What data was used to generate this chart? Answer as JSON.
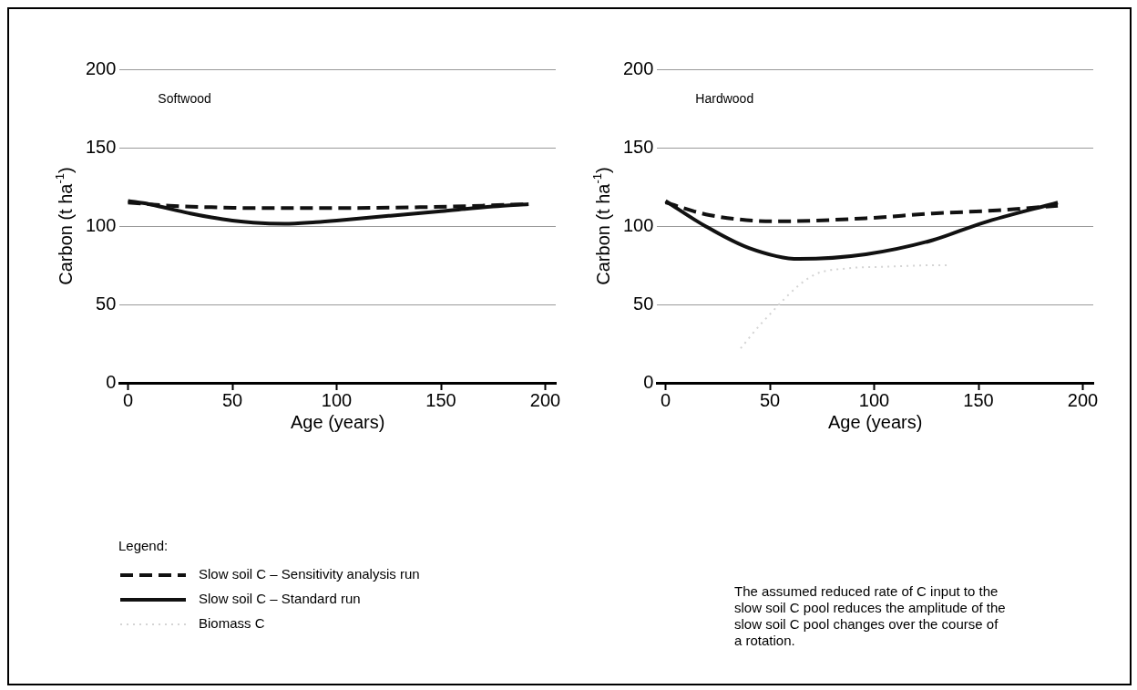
{
  "chart_data": [
    {
      "type": "line",
      "title": "Softwood",
      "xlabel": "Age (years)",
      "ylabel": "Carbon (t ha$^{-1}$)",
      "xlim": [
        -4,
        205
      ],
      "xticks": [
        0,
        50,
        100,
        150,
        200
      ],
      "ylim": [
        0,
        200
      ],
      "yticks": [
        0,
        50,
        100,
        150,
        200
      ],
      "grid": "y",
      "marker": "none",
      "legend": "bottom",
      "legend_title": "Legend:",
      "series": [
        {
          "name": "Slow soil C – Sensitivity analysis run",
          "color": "#111111",
          "line_style": "dashed",
          "x": [
            0,
            20,
            40,
            60,
            100,
            140,
            170,
            192
          ],
          "values": [
            115,
            113,
            112,
            111.5,
            111.5,
            112,
            113,
            114
          ]
        },
        {
          "name": "Slow soil C – Standard run",
          "color": "#111111",
          "line_style": "solid",
          "x": [
            0,
            10,
            20,
            30,
            40,
            50,
            60,
            75,
            90,
            100,
            125,
            150,
            175,
            192
          ],
          "values": [
            116,
            114,
            111,
            108,
            105.5,
            103.5,
            102.2,
            101.5,
            102.5,
            103.5,
            106.5,
            109.5,
            112.5,
            114
          ]
        }
      ]
    },
    {
      "type": "line",
      "title": "Hardwood",
      "xlabel": "Age (years)",
      "ylabel": "Carbon (t ha$^{-1}$)",
      "xlim": [
        -4,
        205
      ],
      "xticks": [
        0,
        50,
        100,
        150,
        200
      ],
      "ylim": [
        0,
        200
      ],
      "yticks": [
        0,
        50,
        100,
        150,
        200
      ],
      "grid": "y",
      "marker": "none",
      "annotations": [
        "The assumed reduced rate of C input to the slow soil C pool reduces the amplitude of the slow soil C pool changes over the course of a rotation."
      ],
      "series": [
        {
          "name": "Slow soil C – Sensitivity analysis run",
          "color": "#111111",
          "line_style": "dashed",
          "x": [
            0,
            21,
            53,
            96,
            128,
            159,
            188
          ],
          "values": [
            115,
            107,
            103,
            105,
            108,
            110,
            113
          ]
        },
        {
          "name": "Slow soil C – Standard run",
          "color": "#111111",
          "line_style": "solid",
          "x": [
            0,
            19,
            40,
            64,
            96,
            128,
            152,
            188
          ],
          "values": [
            116,
            100,
            86,
            79,
            82,
            91,
            102,
            115
          ]
        },
        {
          "name": "Biomass C",
          "color": "#d4d4d4",
          "line_style": "dotted",
          "x": [
            36,
            46,
            70,
            87,
            105,
            128,
            135
          ],
          "values": [
            22,
            38,
            68,
            73,
            74,
            75,
            75
          ]
        }
      ]
    }
  ]
}
